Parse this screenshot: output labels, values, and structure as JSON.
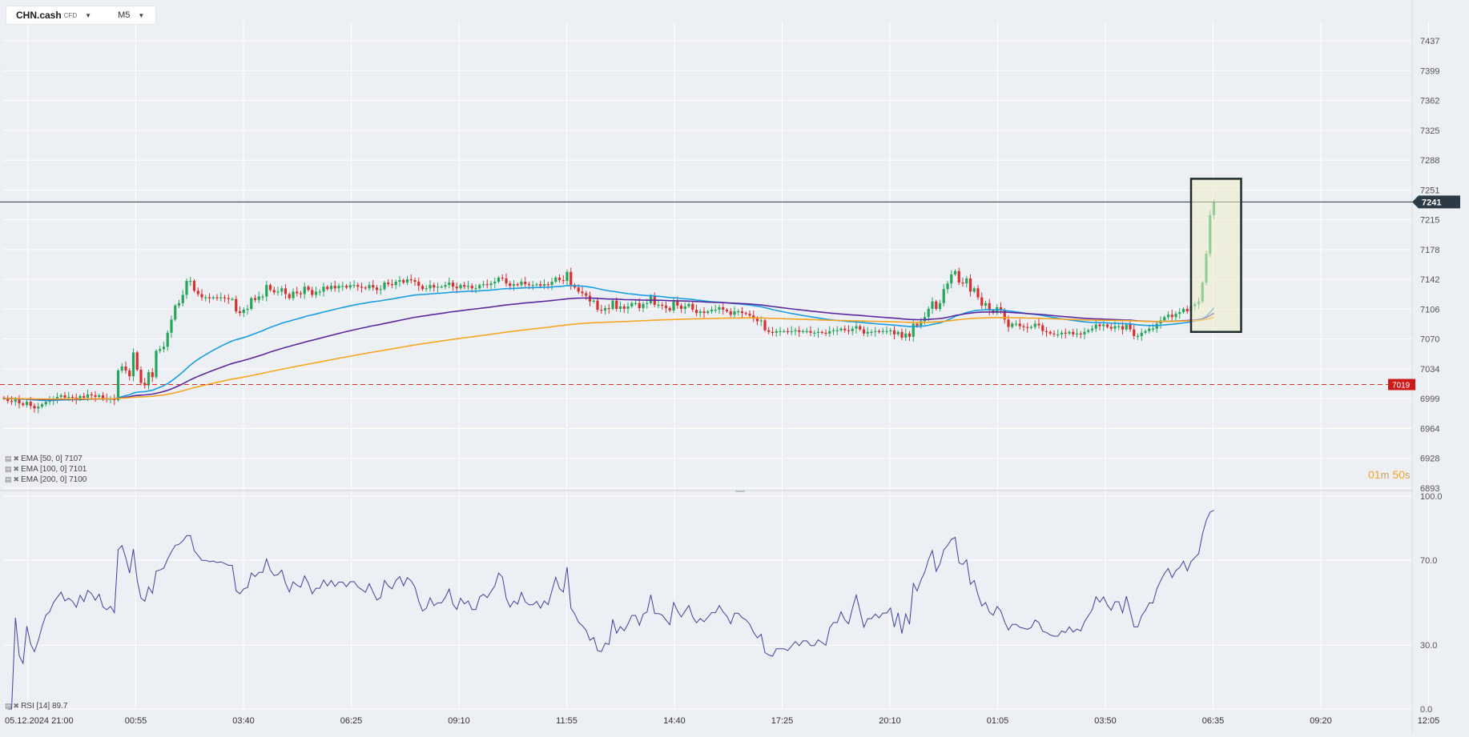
{
  "symbol": {
    "name": "CHN.cash",
    "type": "CFD",
    "timeframe": "M5"
  },
  "price": {
    "current_label": "7241",
    "current": 7241,
    "level_label": "7019",
    "level": 7019
  },
  "countdown": {
    "min": "01",
    "min_unit": "m",
    "sec": "50",
    "sec_unit": "s"
  },
  "indicators": [
    {
      "label": "EMA  [50,  0]  7107",
      "color": "#1a9de1"
    },
    {
      "label": "EMA  [100,  0]  7101",
      "color": "#5b2a9e"
    },
    {
      "label": "EMA  [200,  0]  7100",
      "color": "#f5a623"
    }
  ],
  "rsi_label": "RSI  [14]  89.7",
  "colors": {
    "up": "#26a65b",
    "down": "#d63031",
    "rsi_line": "#3f4399",
    "level_line": "#d63031",
    "price_tag": "#2b3a45",
    "level_tag": "#cc1a1a"
  },
  "chart_data": [
    {
      "type": "candlestick",
      "title": "",
      "ylim": [
        6893,
        7437
      ],
      "y_ticks": [
        "7437",
        "7399",
        "7362",
        "7325",
        "7288",
        "7251",
        "7215",
        "7178",
        "7142",
        "7106",
        "7070",
        "7034",
        "6999",
        "6964",
        "6928",
        "6893"
      ],
      "x_ticks": [
        "05.12.2024  21:00",
        "00:55",
        "03:40",
        "06:25",
        "09:10",
        "11:55",
        "14:40",
        "17:25",
        "20:10",
        "01:05",
        "03:50",
        "06:35",
        "09:20",
        "12:05"
      ],
      "close": [
        7002,
        6999,
        6998,
        7001,
        6996,
        6994,
        6998,
        6993,
        6990,
        6992,
        6995,
        6998,
        6999,
        7002,
        7004,
        7006,
        7003,
        7004,
        7003,
        7001,
        7005,
        7003,
        7007,
        7006,
        7004,
        7006,
        7002,
        7001,
        7002,
        7000,
        7036,
        7041,
        7036,
        7029,
        7058,
        7037,
        7021,
        7018,
        7034,
        7028,
        7060,
        7062,
        7065,
        7082,
        7098,
        7115,
        7118,
        7128,
        7145,
        7145,
        7133,
        7129,
        7125,
        7125,
        7124,
        7125,
        7124,
        7125,
        7124,
        7123,
        7123,
        7108,
        7106,
        7110,
        7111,
        7124,
        7122,
        7126,
        7126,
        7140,
        7134,
        7131,
        7132,
        7136,
        7129,
        7124,
        7132,
        7130,
        7129,
        7138,
        7134,
        7128,
        7132,
        7132,
        7138,
        7135,
        7139,
        7136,
        7139,
        7139,
        7137,
        7140,
        7140,
        7138,
        7137,
        7136,
        7140,
        7137,
        7134,
        7135,
        7143,
        7141,
        7140,
        7144,
        7146,
        7143,
        7147,
        7146,
        7144,
        7139,
        7135,
        7136,
        7140,
        7137,
        7138,
        7138,
        7140,
        7143,
        7138,
        7136,
        7140,
        7138,
        7139,
        7136,
        7136,
        7140,
        7141,
        7140,
        7142,
        7144,
        7149,
        7148,
        7142,
        7139,
        7141,
        7140,
        7144,
        7141,
        7140,
        7140,
        7141,
        7139,
        7141,
        7140,
        7144,
        7149,
        7146,
        7145,
        7156,
        7140,
        7137,
        7132,
        7130,
        7127,
        7120,
        7121,
        7110,
        7109,
        7112,
        7111,
        7121,
        7111,
        7114,
        7111,
        7114,
        7118,
        7118,
        7112,
        7117,
        7118,
        7127,
        7116,
        7116,
        7115,
        7112,
        7109,
        7120,
        7115,
        7111,
        7114,
        7117,
        7110,
        7106,
        7108,
        7106,
        7108,
        7110,
        7110,
        7113,
        7110,
        7108,
        7104,
        7108,
        7108,
        7106,
        7105,
        7103,
        7099,
        7096,
        7097,
        7085,
        7083,
        7082,
        7084,
        7084,
        7084,
        7083,
        7084,
        7085,
        7083,
        7084,
        7084,
        7082,
        7082,
        7083,
        7082,
        7081,
        7084,
        7085,
        7085,
        7087,
        7085,
        7084,
        7087,
        7090,
        7086,
        7081,
        7083,
        7083,
        7084,
        7083,
        7084,
        7084,
        7085,
        7080,
        7083,
        7076,
        7081,
        7077,
        7093,
        7090,
        7096,
        7101,
        7111,
        7120,
        7111,
        7118,
        7135,
        7142,
        7153,
        7157,
        7143,
        7142,
        7148,
        7132,
        7136,
        7125,
        7115,
        7118,
        7109,
        7106,
        7113,
        7109,
        7098,
        7089,
        7093,
        7093,
        7090,
        7089,
        7088,
        7089,
        7093,
        7091,
        7084,
        7083,
        7081,
        7080,
        7080,
        7082,
        7081,
        7083,
        7080,
        7081,
        7080,
        7083,
        7085,
        7087,
        7092,
        7090,
        7092,
        7089,
        7087,
        7090,
        7090,
        7086,
        7092,
        7086,
        7078,
        7078,
        7082,
        7084,
        7087,
        7087,
        7093,
        7097,
        7101,
        7104,
        7101,
        7105,
        7107,
        7111,
        7108,
        7114,
        7117,
        7120,
        7143,
        7178,
        7225,
        7241
      ],
      "series": [
        {
          "name": "EMA [50, 0]",
          "value": 7107
        },
        {
          "name": "EMA [100, 0]",
          "value": 7101
        },
        {
          "name": "EMA [200, 0]",
          "value": 7100
        }
      ]
    },
    {
      "type": "line",
      "title": "",
      "name": "RSI [14]",
      "ylim": [
        0,
        100
      ],
      "y_ticks": [
        "100.0",
        "70.0",
        "30.0",
        "0.0"
      ],
      "last": 89.7
    }
  ]
}
